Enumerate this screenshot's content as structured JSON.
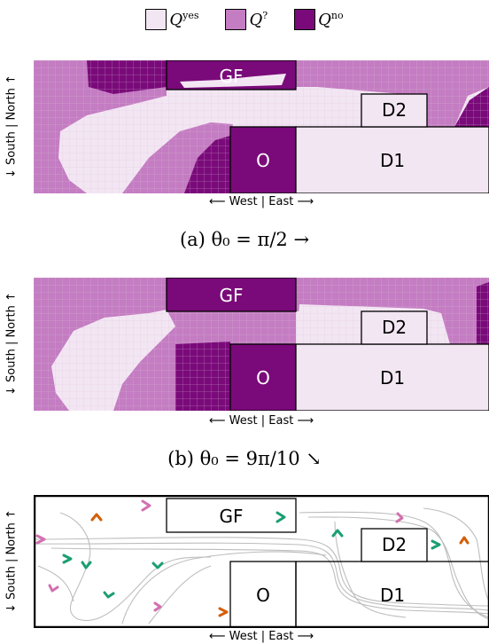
{
  "legend": {
    "items": [
      {
        "label_main": "Q",
        "label_sup": "yes",
        "color": "#f3e6f3"
      },
      {
        "label_main": "Q",
        "label_sup": "?",
        "color": "#c47cc2"
      },
      {
        "label_main": "Q",
        "label_sup": "no",
        "color": "#7a0a7a"
      }
    ]
  },
  "axes": {
    "ylabel": "↓ South | North ↑",
    "xlabel": "⟵ West | East ⟶"
  },
  "rooms": {
    "gf": "GF",
    "d2": "D2",
    "o": "O",
    "d1": "D1"
  },
  "captions": {
    "a": "(a) θ₀ = π/2 →",
    "b": "(b) θ₀ = 9π/10 ↘"
  },
  "colors": {
    "yes": "#f3e6f3",
    "maybe": "#c47cc2",
    "no": "#7a0a7a",
    "arrow_pink": "#d36fb0",
    "arrow_orange": "#d35f0a",
    "arrow_green": "#1a9e73",
    "trajectory": "#bdbdbd"
  }
}
